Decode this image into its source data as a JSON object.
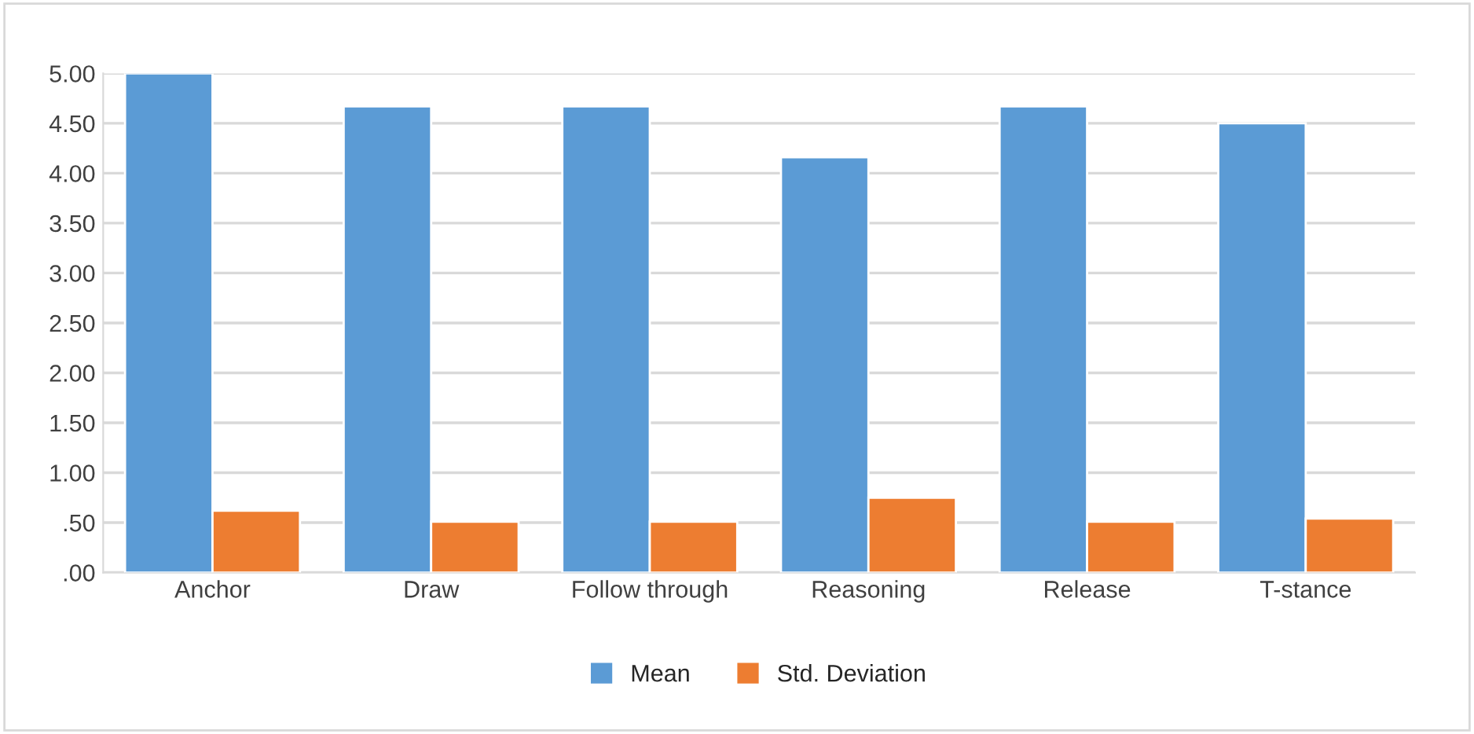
{
  "chart_data": {
    "type": "bar",
    "categories": [
      "Anchor",
      "Draw",
      "Follow through",
      "Reasoning",
      "Release",
      "T-stance"
    ],
    "series": [
      {
        "name": "Mean",
        "color": "#5b9bd5",
        "values": [
          5.0,
          4.67,
          4.67,
          4.16,
          4.67,
          4.5
        ]
      },
      {
        "name": "Std. Deviation",
        "color": "#ed7d31",
        "values": [
          0.62,
          0.51,
          0.51,
          0.75,
          0.51,
          0.54
        ]
      }
    ],
    "ylim": [
      0,
      5.0
    ],
    "yticks": [
      {
        "value": 0,
        "label": ".00"
      },
      {
        "value": 0.5,
        "label": ".50"
      },
      {
        "value": 1.0,
        "label": "1.00"
      },
      {
        "value": 1.5,
        "label": "1.50"
      },
      {
        "value": 2.0,
        "label": "2.00"
      },
      {
        "value": 2.5,
        "label": "2.50"
      },
      {
        "value": 3.0,
        "label": "3.00"
      },
      {
        "value": 3.5,
        "label": "3.50"
      },
      {
        "value": 4.0,
        "label": "4.00"
      },
      {
        "value": 4.5,
        "label": "4.50"
      },
      {
        "value": 5.0,
        "label": "5.00"
      }
    ],
    "grid": "y",
    "legend": "bottom"
  }
}
